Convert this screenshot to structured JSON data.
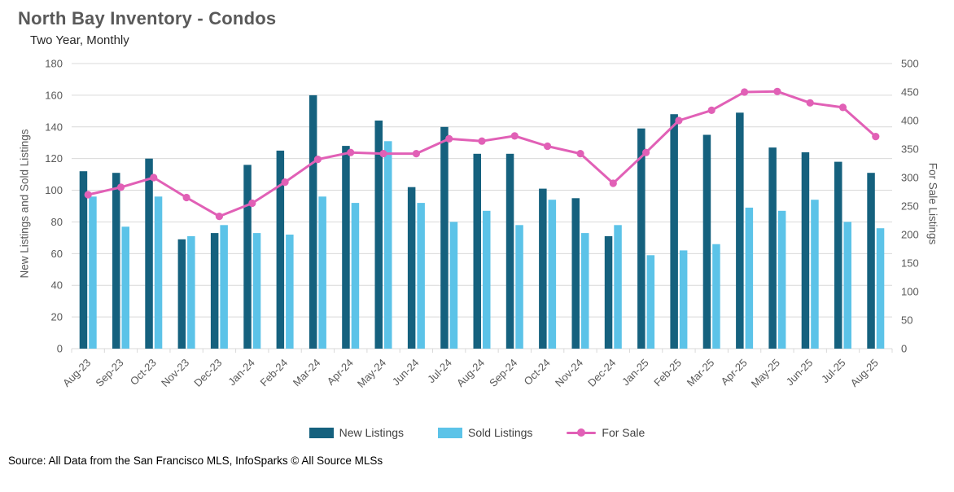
{
  "title": "North Bay Inventory - Condos",
  "subtitle": "Two Year, Monthly",
  "source": "Source: All Data from the San Francisco MLS, InfoSparks © All Source MLSs",
  "colors": {
    "new_listings": "#15617e",
    "sold_listings": "#5cc3e8",
    "for_sale": "#e160b6",
    "grid": "#d9d9d9",
    "axis_text": "#595959"
  },
  "chart_data": {
    "type": "bar",
    "subtype": "grouped bars with overlay line",
    "title": "North Bay Inventory - Condos",
    "subtitle": "Two Year, Monthly",
    "categories": [
      "Aug-23",
      "Sep-23",
      "Oct-23",
      "Nov-23",
      "Dec-23",
      "Jan-24",
      "Feb-24",
      "Mar-24",
      "Apr-24",
      "May-24",
      "Jun-24",
      "Jul-24",
      "Aug-24",
      "Sep-24",
      "Oct-24",
      "Nov-24",
      "Dec-24",
      "Jan-25",
      "Feb-25",
      "Mar-25",
      "Apr-25",
      "May-25",
      "Jun-25",
      "Jul-25",
      "Aug-25"
    ],
    "series": [
      {
        "name": "New Listings",
        "type": "bar",
        "axis": "left",
        "values": [
          112,
          111,
          120,
          69,
          73,
          116,
          125,
          160,
          128,
          144,
          102,
          140,
          123,
          123,
          101,
          95,
          71,
          139,
          148,
          135,
          149,
          127,
          124,
          118,
          111
        ]
      },
      {
        "name": "Sold Listings",
        "type": "bar",
        "axis": "left",
        "values": [
          96,
          77,
          96,
          71,
          78,
          73,
          72,
          96,
          92,
          131,
          92,
          80,
          87,
          78,
          94,
          73,
          78,
          59,
          62,
          66,
          89,
          87,
          94,
          80,
          76
        ]
      },
      {
        "name": "For Sale",
        "type": "line",
        "axis": "right",
        "values": [
          270,
          283,
          300,
          265,
          232,
          255,
          292,
          332,
          344,
          342,
          342,
          368,
          364,
          373,
          355,
          342,
          290,
          344,
          400,
          418,
          450,
          451,
          431,
          423,
          372
        ]
      }
    ],
    "left_axis": {
      "label": "New Listings and Sold Listings",
      "min": 0,
      "max": 180,
      "step": 20
    },
    "right_axis": {
      "label": "For Sale Listings",
      "min": 0,
      "max": 500,
      "step": 50
    },
    "grid": true,
    "legend_position": "bottom"
  }
}
